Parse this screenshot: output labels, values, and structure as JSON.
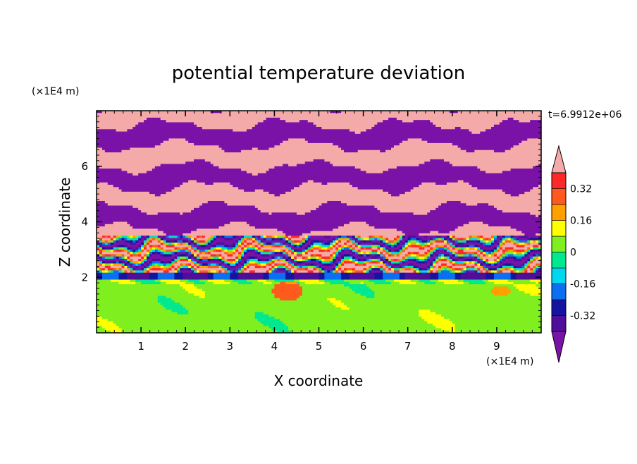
{
  "chart_data": {
    "type": "heatmap",
    "title": "potential temperature deviation",
    "xlabel": "X coordinate",
    "ylabel": "Z coordinate",
    "x_unit": "(×1E4 m)",
    "y_unit": "(×1E4 m)",
    "time_label": "t=6.9912e+06",
    "xlim": [
      0,
      10
    ],
    "ylim": [
      0,
      8
    ],
    "x_ticks": [
      1,
      2,
      3,
      4,
      5,
      6,
      7,
      8,
      9
    ],
    "y_ticks": [
      2,
      4,
      6
    ],
    "colorbar": {
      "levels": [
        -0.4,
        -0.32,
        -0.24,
        -0.16,
        -0.08,
        0,
        0.08,
        0.16,
        0.24,
        0.32,
        0.4
      ],
      "tick_labels": [
        "0.32",
        "0.16",
        "0",
        "-0.16",
        "-0.32"
      ],
      "tick_values": [
        0.32,
        0.16,
        0,
        -0.16,
        -0.32
      ],
      "colors": [
        "#7b12a8",
        "#4f0f9a",
        "#1414a0",
        "#0a6ff0",
        "#00d8f0",
        "#00e890",
        "#7fef20",
        "#ffff00",
        "#ffa000",
        "#ff5a1e",
        "#ff2828",
        "#f5aaaa"
      ],
      "under_color": "#7b12a8",
      "over_color": "#f5aaaa"
    },
    "layers": [
      {
        "z_range": [
          0,
          2
        ],
        "description": "lower layer dominated by values near 0 to 0.08 (green / light green)"
      },
      {
        "z_range": [
          2,
          3.5
        ],
        "description": "mixed small-scale structure spanning full colour range"
      },
      {
        "z_range": [
          3.5,
          8
        ],
        "description": "alternating bands of values above 0.4 (pink) and below -0.4 (purple)"
      }
    ]
  }
}
